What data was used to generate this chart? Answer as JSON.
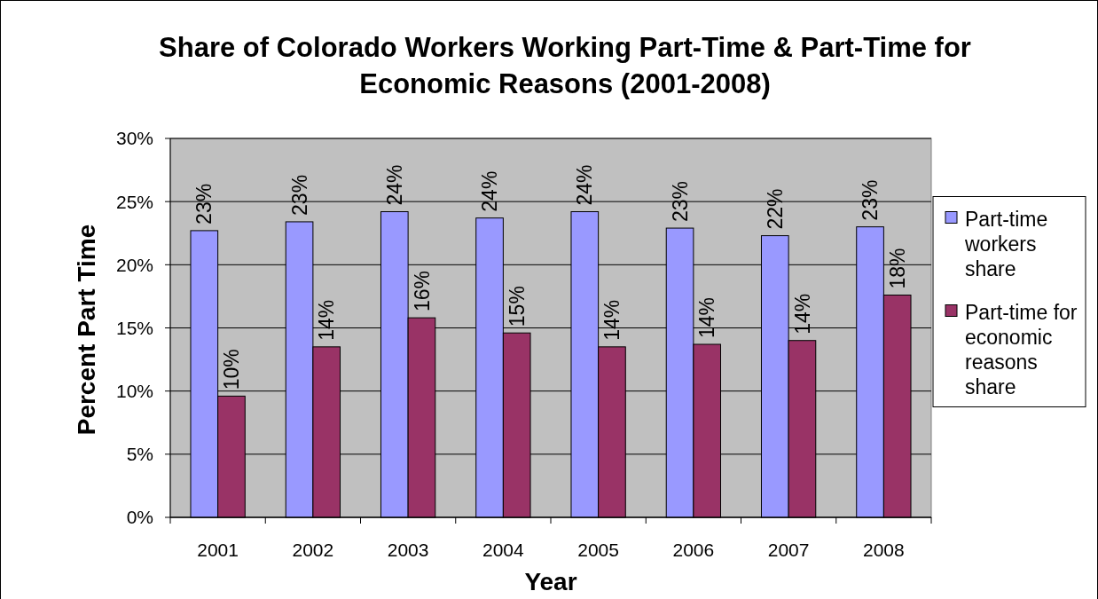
{
  "chart_data": {
    "type": "bar",
    "title": "Share of Colorado Workers Working Part-Time & Part-Time for Economic Reasons (2001-2008)",
    "xlabel": "Year",
    "ylabel": "Percent Part Time",
    "categories": [
      "2001",
      "2002",
      "2003",
      "2004",
      "2005",
      "2006",
      "2007",
      "2008"
    ],
    "series": [
      {
        "name": "Part-time workers share",
        "color": "#9999ff",
        "values": [
          22.7,
          23.4,
          24.2,
          23.7,
          24.2,
          22.9,
          22.3,
          23.0
        ],
        "value_labels": [
          "23%",
          "23%",
          "24%",
          "24%",
          "24%",
          "23%",
          "22%",
          "23%"
        ]
      },
      {
        "name": "Part-time for economic reasons share",
        "color": "#993366",
        "values": [
          9.6,
          13.5,
          15.8,
          14.6,
          13.5,
          13.7,
          14.0,
          17.6
        ],
        "value_labels": [
          "10%",
          "14%",
          "16%",
          "15%",
          "14%",
          "14%",
          "14%",
          "18%"
        ]
      }
    ],
    "ylim": [
      0,
      30
    ],
    "yticks": [
      {
        "value": 0,
        "label": "0%"
      },
      {
        "value": 5,
        "label": "5%"
      },
      {
        "value": 10,
        "label": "10%"
      },
      {
        "value": 15,
        "label": "15%"
      },
      {
        "value": 20,
        "label": "20%"
      },
      {
        "value": 25,
        "label": "25%"
      },
      {
        "value": 30,
        "label": "30%"
      }
    ],
    "grid": "y",
    "legend": "right"
  }
}
